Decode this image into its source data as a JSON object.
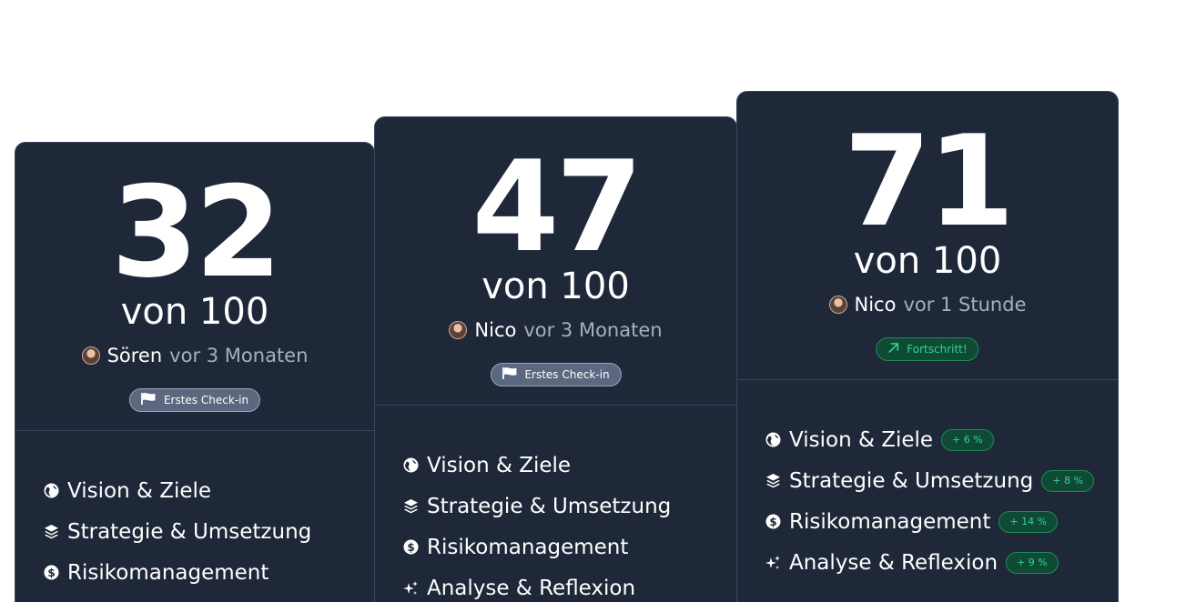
{
  "cards": [
    {
      "score": "32",
      "of_total": "von 100",
      "user": "Sören",
      "time": "vor 3 Monaten",
      "badge": "Erstes Check-in",
      "items": [
        {
          "label": "Vision & Ziele",
          "icon": "globe-icon"
        },
        {
          "label": "Strategie & Umsetzung",
          "icon": "layers-icon"
        },
        {
          "label": "Risikomanagement",
          "icon": "dollar-coin-icon"
        }
      ]
    },
    {
      "score": "47",
      "of_total": "von 100",
      "user": "Nico",
      "time": "vor 3 Monaten",
      "badge": "Erstes Check-in",
      "items": [
        {
          "label": "Vision & Ziele",
          "icon": "globe-icon"
        },
        {
          "label": "Strategie & Umsetzung",
          "icon": "layers-icon"
        },
        {
          "label": "Risikomanagement",
          "icon": "dollar-coin-icon"
        },
        {
          "label": "Analyse & Reflexion",
          "icon": "sparkles-icon"
        }
      ]
    },
    {
      "score": "71",
      "of_total": "von 100",
      "user": "Nico",
      "time": "vor 1 Stunde",
      "badge": "Fortschritt!",
      "items": [
        {
          "label": "Vision & Ziele",
          "icon": "globe-icon",
          "delta": "+ 6 %"
        },
        {
          "label": "Strategie & Umsetzung",
          "icon": "layers-icon",
          "delta": "+ 8 %"
        },
        {
          "label": "Risikomanagement",
          "icon": "dollar-coin-icon",
          "delta": "+ 14 %"
        },
        {
          "label": "Analyse & Reflexion",
          "icon": "sparkles-icon",
          "delta": "+ 9 %"
        }
      ]
    }
  ],
  "colors": {
    "card_bg": "#1f2839",
    "muted_text": "#a6afc0",
    "progress_green": "#34d399",
    "progress_bg": "#0f4a35",
    "first_badge_bg": "#5c6780"
  }
}
